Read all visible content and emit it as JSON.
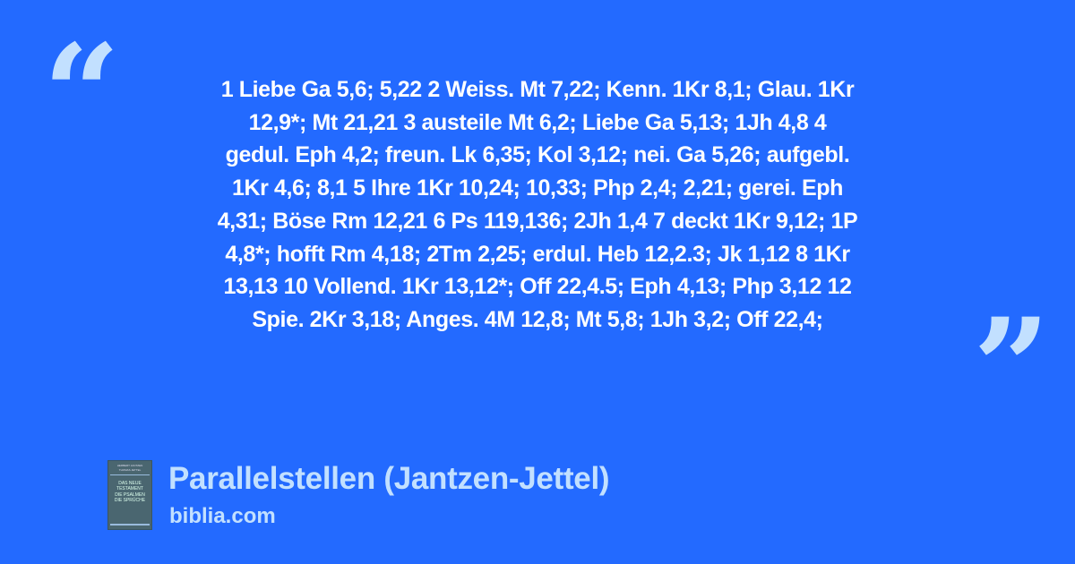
{
  "quote_marks": {
    "open": "“",
    "close": "”",
    "color": "#c2e0ff"
  },
  "background_color": "#236aff",
  "verse_lines": [
    "1 Liebe Ga 5,6; 5,22 2 Weiss. Mt 7,22; Kenn. 1Kr 8,1; Glau. 1Kr",
    "12,9*; Mt 21,21 3 austeile Mt 6,2; Liebe Ga 5,13; 1Jh 4,8 4",
    "gedul. Eph 4,2; freun. Lk 6,35; Kol 3,12; nei. Ga 5,26; aufgebl.",
    "1Kr 4,6; 8,1 5 Ihre 1Kr 10,24; 10,33; Php 2,4; 2,21; gerei. Eph",
    "4,31; Böse Rm 12,21 6 Ps 119,136; 2Jh 1,4 7 deckt 1Kr 9,12; 1P",
    "4,8*; hofft Rm 4,18; 2Tm 2,25; erdul. Heb 12,2.3; Jk 1,12 8 1Kr",
    "13,13 10 Vollend. 1Kr 13,12*; Off 22,4.5; Eph 4,13; Php 3,12 12",
    "Spie. 2Kr 3,18; Anges. 4M 12,8; Mt 5,8; 1Jh 3,2; Off 22,4;"
  ],
  "book_cover": {
    "authors": [
      "HERBERT JANTZEN",
      "THOMAS JETTEL"
    ],
    "title_lines": [
      "DAS NEUE",
      "TESTAMENT",
      "DIE PSALMEN",
      "DIE SPRÜCHE"
    ]
  },
  "source": {
    "title": "Parallelstellen (Jantzen-Jettel)",
    "site": "biblia.com"
  }
}
